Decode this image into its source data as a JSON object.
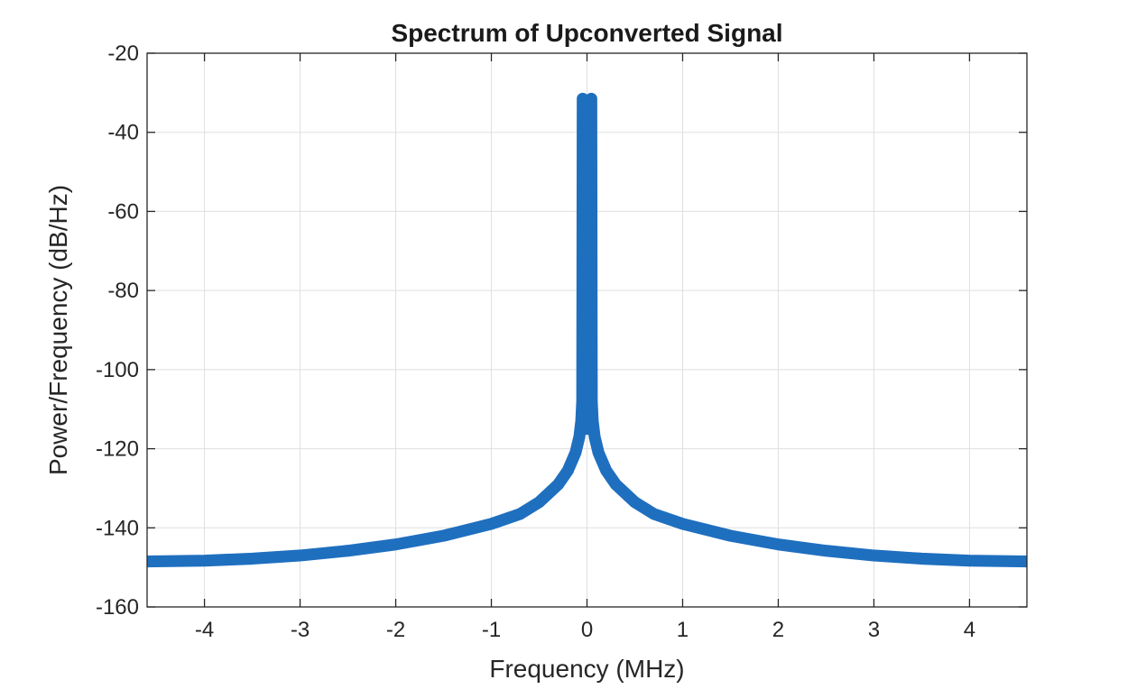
{
  "chart_data": {
    "type": "line",
    "title": "Spectrum of Upconverted Signal",
    "xlabel": "Frequency (MHz)",
    "ylabel": "Power/Frequency (dB/Hz)",
    "xlim": [
      -4.6,
      4.6
    ],
    "ylim": [
      -160,
      -20
    ],
    "xticks": [
      -4,
      -3,
      -2,
      -1,
      0,
      1,
      2,
      3,
      4
    ],
    "yticks": [
      -20,
      -40,
      -60,
      -80,
      -100,
      -120,
      -140,
      -160
    ],
    "grid": true,
    "legend": "none",
    "series": [
      {
        "color": "#1f6fbf",
        "band_thickness_db": 3,
        "points": [
          [
            -4.6,
            -148.5
          ],
          [
            -4.0,
            -148.3
          ],
          [
            -3.5,
            -147.8
          ],
          [
            -3.0,
            -147.0
          ],
          [
            -2.5,
            -145.8
          ],
          [
            -2.0,
            -144.2
          ],
          [
            -1.5,
            -142.0
          ],
          [
            -1.0,
            -139.0
          ],
          [
            -0.7,
            -136.5
          ],
          [
            -0.5,
            -133.5
          ],
          [
            -0.3,
            -129.0
          ],
          [
            -0.2,
            -125.5
          ],
          [
            -0.12,
            -121.0
          ],
          [
            -0.08,
            -117.0
          ],
          [
            -0.06,
            -113.0
          ],
          [
            -0.05,
            -108.0
          ],
          [
            -0.045,
            -31.5
          ],
          [
            -0.04,
            -108.0
          ],
          [
            -0.03,
            -112.0
          ],
          [
            -0.015,
            -114.5
          ],
          [
            0.0,
            -115.0
          ],
          [
            0.015,
            -114.5
          ],
          [
            0.03,
            -112.0
          ],
          [
            0.04,
            -108.0
          ],
          [
            0.045,
            -31.5
          ],
          [
            0.05,
            -108.0
          ],
          [
            0.06,
            -113.0
          ],
          [
            0.08,
            -117.0
          ],
          [
            0.12,
            -121.0
          ],
          [
            0.2,
            -125.5
          ],
          [
            0.3,
            -129.0
          ],
          [
            0.5,
            -133.5
          ],
          [
            0.7,
            -136.5
          ],
          [
            1.0,
            -139.0
          ],
          [
            1.5,
            -142.0
          ],
          [
            2.0,
            -144.2
          ],
          [
            2.5,
            -145.8
          ],
          [
            3.0,
            -147.0
          ],
          [
            3.5,
            -147.8
          ],
          [
            4.0,
            -148.3
          ],
          [
            4.6,
            -148.5
          ]
        ]
      }
    ]
  }
}
